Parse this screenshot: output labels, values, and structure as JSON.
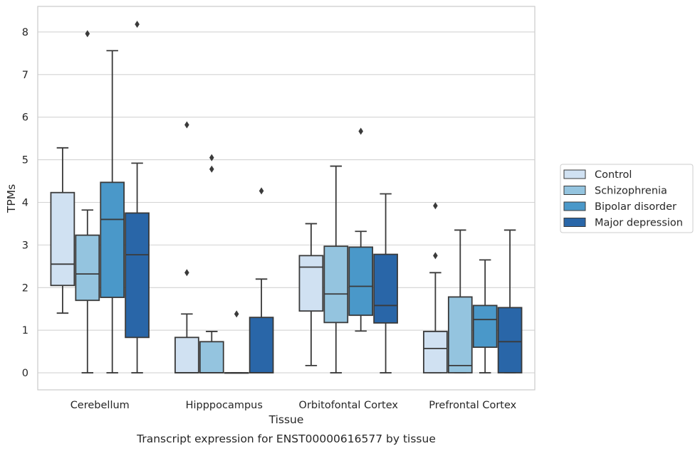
{
  "chart_data": {
    "type": "box",
    "caption": "Transcript expression for ENST00000616577 by tissue",
    "xlabel": "Tissue",
    "ylabel": "TPMs",
    "ylim": [
      -0.4,
      8.6
    ],
    "yticks": [
      0,
      1,
      2,
      3,
      4,
      5,
      6,
      7,
      8
    ],
    "grid": true,
    "legend_position": "right",
    "categories": [
      "Cerebellum",
      "Hipppocampus",
      "Orbitofontal Cortex",
      "Prefrontal Cortex"
    ],
    "series": [
      {
        "name": "Control",
        "color": "#d0e1f2",
        "boxes": [
          {
            "whisker_low": 1.4,
            "q1": 2.05,
            "median": 2.55,
            "q3": 4.23,
            "whisker_high": 5.28,
            "outliers": []
          },
          {
            "whisker_low": 0.0,
            "q1": 0.0,
            "median": 0.0,
            "q3": 0.83,
            "whisker_high": 1.38,
            "outliers": [
              2.35,
              5.82
            ]
          },
          {
            "whisker_low": 0.17,
            "q1": 1.45,
            "median": 2.48,
            "q3": 2.75,
            "whisker_high": 3.5,
            "outliers": []
          },
          {
            "whisker_low": 0.0,
            "q1": 0.0,
            "median": 0.57,
            "q3": 0.97,
            "whisker_high": 2.35,
            "outliers": [
              2.75,
              3.92
            ]
          }
        ]
      },
      {
        "name": "Schizophrenia",
        "color": "#94c4df",
        "boxes": [
          {
            "whisker_low": 0.0,
            "q1": 1.7,
            "median": 2.32,
            "q3": 3.23,
            "whisker_high": 3.82,
            "outliers": [
              7.96
            ]
          },
          {
            "whisker_low": 0.0,
            "q1": 0.0,
            "median": 0.0,
            "q3": 0.73,
            "whisker_high": 0.97,
            "outliers": [
              4.78,
              5.05
            ]
          },
          {
            "whisker_low": 0.0,
            "q1": 1.18,
            "median": 1.85,
            "q3": 2.97,
            "whisker_high": 4.85,
            "outliers": []
          },
          {
            "whisker_low": 0.0,
            "q1": 0.0,
            "median": 0.17,
            "q3": 1.78,
            "whisker_high": 3.35,
            "outliers": []
          }
        ]
      },
      {
        "name": "Bipolar disorder",
        "color": "#4a98c9",
        "boxes": [
          {
            "whisker_low": 0.0,
            "q1": 1.77,
            "median": 3.6,
            "q3": 4.47,
            "whisker_high": 7.56,
            "outliers": []
          },
          {
            "whisker_low": 0.0,
            "q1": 0.0,
            "median": 0.0,
            "q3": 0.0,
            "whisker_high": 0.0,
            "outliers": [
              1.38
            ]
          },
          {
            "whisker_low": 0.98,
            "q1": 1.35,
            "median": 2.03,
            "q3": 2.95,
            "whisker_high": 3.32,
            "outliers": [
              5.67
            ]
          },
          {
            "whisker_low": 0.0,
            "q1": 0.6,
            "median": 1.25,
            "q3": 1.58,
            "whisker_high": 2.65,
            "outliers": []
          }
        ]
      },
      {
        "name": "Major depression",
        "color": "#2966a8",
        "boxes": [
          {
            "whisker_low": 0.0,
            "q1": 0.83,
            "median": 2.77,
            "q3": 3.75,
            "whisker_high": 4.92,
            "outliers": [
              8.18
            ]
          },
          {
            "whisker_low": 0.0,
            "q1": 0.0,
            "median": 0.0,
            "q3": 1.3,
            "whisker_high": 2.2,
            "outliers": [
              4.27
            ]
          },
          {
            "whisker_low": 0.0,
            "q1": 1.17,
            "median": 1.58,
            "q3": 2.78,
            "whisker_high": 4.2,
            "outliers": []
          },
          {
            "whisker_low": 0.0,
            "q1": 0.0,
            "median": 0.73,
            "q3": 1.53,
            "whisker_high": 3.35,
            "outliers": []
          }
        ]
      }
    ]
  }
}
